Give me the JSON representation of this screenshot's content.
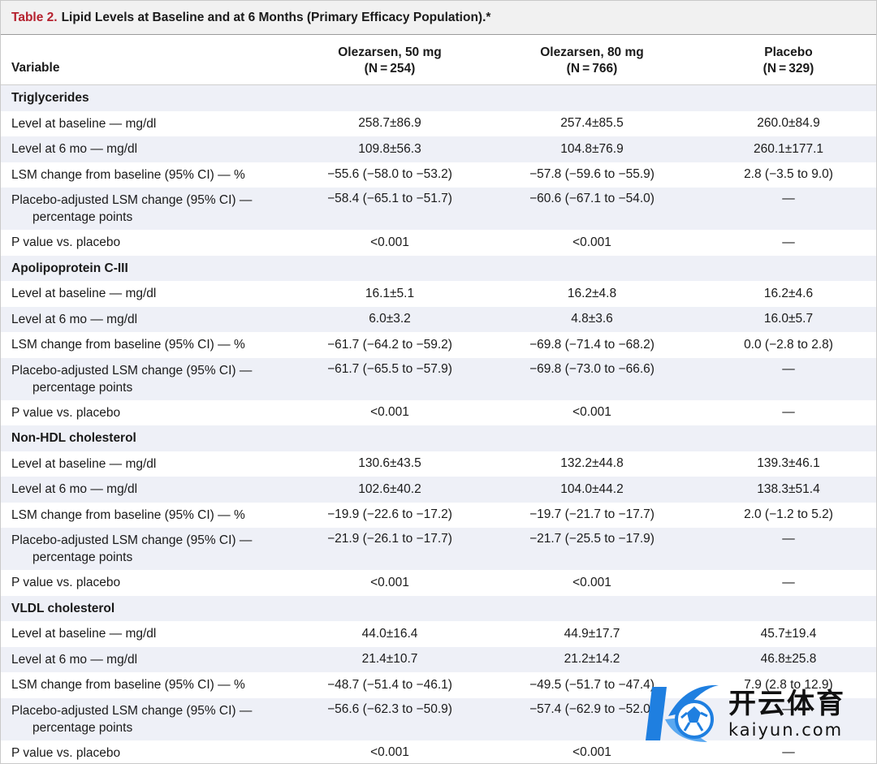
{
  "caption": {
    "label": "Table 2.",
    "title": "Lipid Levels at Baseline and at 6 Months (Primary Efficacy Population).*"
  },
  "header": {
    "variable": "Variable",
    "col1": {
      "name": "Olezarsen, 50 mg",
      "n": "(N = 254)"
    },
    "col2": {
      "name": "Olezarsen, 80 mg",
      "n": "(N = 766)"
    },
    "col3": {
      "name": "Placebo",
      "n": "(N = 329)"
    }
  },
  "sections": [
    {
      "title": "Triglycerides",
      "rows": [
        {
          "label": "Level at baseline — mg/dl",
          "values": [
            "258.7±86.9",
            "257.4±85.5",
            "260.0±84.9"
          ]
        },
        {
          "label": "Level at 6 mo — mg/dl",
          "values": [
            "109.8±56.3",
            "104.8±76.9",
            "260.1±177.1"
          ]
        },
        {
          "label": "LSM change from baseline (95% CI) — %",
          "values": [
            "−55.6 (−58.0 to −53.2)",
            "−57.8 (−59.6 to −55.9)",
            "2.8 (−3.5 to 9.0)"
          ]
        },
        {
          "label": "Placebo-adjusted LSM change (95% CI) —",
          "sublabel": "percentage points",
          "values": [
            "−58.4 (−65.1 to −51.7)",
            "−60.6 (−67.1 to −54.0)",
            "—"
          ]
        },
        {
          "label": "P value vs. placebo",
          "values": [
            "<0.001",
            "<0.001",
            "—"
          ]
        }
      ]
    },
    {
      "title": "Apolipoprotein C-III",
      "rows": [
        {
          "label": "Level at baseline — mg/dl",
          "values": [
            "16.1±5.1",
            "16.2±4.8",
            "16.2±4.6"
          ]
        },
        {
          "label": "Level at 6 mo — mg/dl",
          "values": [
            "6.0±3.2",
            "4.8±3.6",
            "16.0±5.7"
          ]
        },
        {
          "label": "LSM change from baseline (95% CI) — %",
          "values": [
            "−61.7 (−64.2 to −59.2)",
            "−69.8 (−71.4 to −68.2)",
            "0.0 (−2.8 to 2.8)"
          ]
        },
        {
          "label": "Placebo-adjusted LSM change (95% CI) —",
          "sublabel": "percentage points",
          "values": [
            "−61.7 (−65.5 to −57.9)",
            "−69.8 (−73.0 to −66.6)",
            "—"
          ]
        },
        {
          "label": "P value vs. placebo",
          "values": [
            "<0.001",
            "<0.001",
            "—"
          ]
        }
      ]
    },
    {
      "title": "Non-HDL cholesterol",
      "rows": [
        {
          "label": "Level at baseline — mg/dl",
          "values": [
            "130.6±43.5",
            "132.2±44.8",
            "139.3±46.1"
          ]
        },
        {
          "label": "Level at 6 mo — mg/dl",
          "values": [
            "102.6±40.2",
            "104.0±44.2",
            "138.3±51.4"
          ]
        },
        {
          "label": "LSM change from baseline (95% CI) — %",
          "values": [
            "−19.9 (−22.6 to −17.2)",
            "−19.7 (−21.7 to −17.7)",
            "2.0 (−1.2 to 5.2)"
          ]
        },
        {
          "label": "Placebo-adjusted LSM change (95% CI) —",
          "sublabel": "percentage points",
          "values": [
            "−21.9 (−26.1 to −17.7)",
            "−21.7 (−25.5 to −17.9)",
            "—"
          ]
        },
        {
          "label": "P value vs. placebo",
          "values": [
            "<0.001",
            "<0.001",
            "—"
          ]
        }
      ]
    },
    {
      "title": "VLDL cholesterol",
      "rows": [
        {
          "label": "Level at baseline — mg/dl",
          "values": [
            "44.0±16.4",
            "44.9±17.7",
            "45.7±19.4"
          ]
        },
        {
          "label": "Level at 6 mo — mg/dl",
          "values": [
            "21.4±10.7",
            "21.2±14.2",
            "46.8±25.8"
          ]
        },
        {
          "label": "LSM change from baseline (95% CI) — %",
          "values": [
            "−48.7 (−51.4 to −46.1)",
            "−49.5 (−51.7 to −47.4)",
            "7.9 (2.8 to 12.9)"
          ]
        },
        {
          "label": "Placebo-adjusted LSM change (95% CI) —",
          "sublabel": "percentage points",
          "values": [
            "−56.6 (−62.3 to −50.9)",
            "−57.4 (−62.9 to −52.0)",
            "—"
          ]
        },
        {
          "label": "P value vs. placebo",
          "values": [
            "<0.001",
            "<0.001",
            "—"
          ]
        }
      ]
    }
  ],
  "watermark": {
    "chinese": "开云体育",
    "domain": "kaiyun.com",
    "colors": {
      "blue": "#1f7fe0",
      "dark": "#111111"
    }
  },
  "colors": {
    "caption_label": "#b5212e",
    "caption_bg": "#f1f1f1",
    "row_shade": "#eef0f7"
  }
}
